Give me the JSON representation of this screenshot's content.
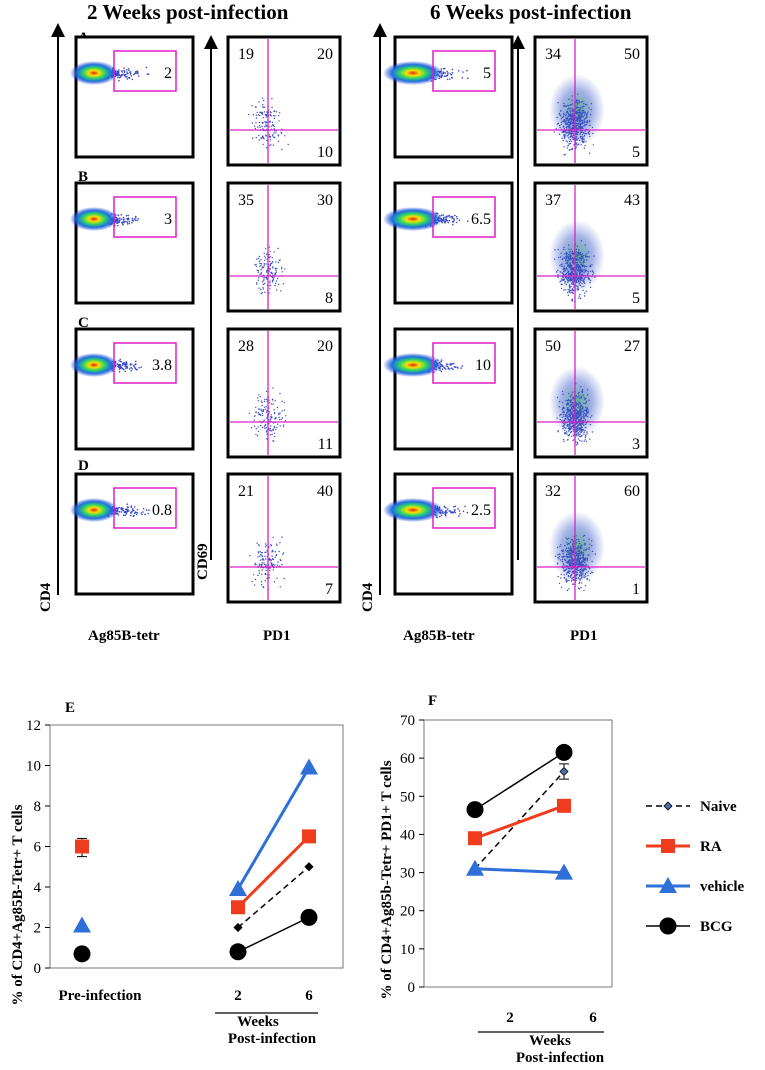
{
  "titles": {
    "left": "2 Weeks post-infection",
    "right": "6 Weeks post-infection"
  },
  "row_labels": [
    "A",
    "B",
    "C",
    "D"
  ],
  "axis_labels": {
    "cd4": "CD4",
    "cd69": "CD69",
    "ag85": "Ag85B-tetr",
    "pd1": "PD1"
  },
  "flow_panels": [
    {
      "row": "A",
      "week2": {
        "gate": "2",
        "ul": "19",
        "ur": "20",
        "lr": "10"
      },
      "week6": {
        "gate": "5",
        "ul": "34",
        "ur": "50",
        "lr": "5"
      }
    },
    {
      "row": "B",
      "week2": {
        "gate": "3",
        "ul": "35",
        "ur": "30",
        "lr": "8"
      },
      "week6": {
        "gate": "6.5",
        "ul": "37",
        "ur": "43",
        "lr": "5"
      }
    },
    {
      "row": "C",
      "week2": {
        "gate": "3.8",
        "ul": "28",
        "ur": "20",
        "lr": "11"
      },
      "week6": {
        "gate": "10",
        "ul": "50",
        "ur": "27",
        "lr": "3"
      }
    },
    {
      "row": "D",
      "week2": {
        "gate": "0.8",
        "ul": "21",
        "ur": "40",
        "lr": "7"
      },
      "week6": {
        "gate": "2.5",
        "ul": "32",
        "ur": "60",
        "lr": "1"
      }
    }
  ],
  "colors": {
    "naive": "#000000",
    "naive_marker": "#4a6fa5",
    "ra": "#f03c1e",
    "vehicle": "#2f6fd8",
    "bcg": "#000000",
    "gate": "#e01ec8"
  },
  "chart_data": [
    {
      "type": "line",
      "panel": "E",
      "title": "",
      "ylabel": "% of CD4+Ag85B-Tetr+ T cells",
      "ylim": [
        0,
        12
      ],
      "yticks": [
        "0",
        "2",
        "4",
        "6",
        "8",
        "10",
        "12"
      ],
      "xticks": [
        "Pre-infection",
        "2",
        "6"
      ],
      "xlabel_line1": "Weeks",
      "xlabel_line2": "Post-infection",
      "series": [
        {
          "name": "Naive",
          "style": "dashed",
          "marker": "diamond",
          "values": [
            null,
            2,
            5
          ]
        },
        {
          "name": "RA",
          "style": "solid",
          "marker": "square",
          "values": [
            6,
            3,
            6.5
          ]
        },
        {
          "name": "vehicle",
          "style": "solid",
          "marker": "triangle",
          "values": [
            2.1,
            3.9,
            9.9
          ]
        },
        {
          "name": "BCG",
          "style": "solid",
          "marker": "circle",
          "values": [
            0.7,
            0.8,
            2.5
          ]
        }
      ]
    },
    {
      "type": "line",
      "panel": "F",
      "title": "",
      "ylabel": "% of CD4+Ag85b-Tetr+ PD1+ T cells",
      "ylim": [
        0,
        70
      ],
      "yticks": [
        "0",
        "10",
        "20",
        "30",
        "40",
        "50",
        "60",
        "70"
      ],
      "xticks": [
        "2",
        "6"
      ],
      "xlabel_line1": "Weeks",
      "xlabel_line2": "Post-infection",
      "series": [
        {
          "name": "Naive",
          "style": "dashed",
          "marker": "diamond",
          "values": [
            31,
            56.5
          ]
        },
        {
          "name": "RA",
          "style": "solid",
          "marker": "square",
          "values": [
            39,
            47.5
          ]
        },
        {
          "name": "vehicle",
          "style": "solid",
          "marker": "triangle",
          "values": [
            31,
            30
          ]
        },
        {
          "name": "BCG",
          "style": "solid",
          "marker": "circle",
          "values": [
            46.5,
            61.5
          ]
        }
      ]
    }
  ],
  "legend": [
    "Naive",
    "RA",
    "vehicle",
    "BCG"
  ],
  "panel_letters": {
    "e": "E",
    "f": "F"
  }
}
